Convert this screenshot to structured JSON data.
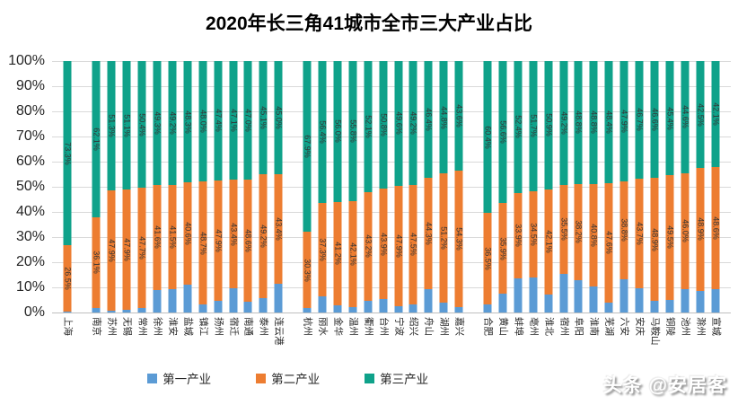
{
  "title": "2020年长三角41城市全市三大产业占比",
  "footer": {
    "watermark": "头条 @安居客"
  },
  "colors": {
    "primary": "#5B9BD5",
    "secondary": "#ED7D31",
    "tertiary": "#0FA28A",
    "gridline": "#D9D9D9"
  },
  "legend": [
    {
      "label": "第一产业",
      "color": "#5B9BD5"
    },
    {
      "label": "第二产业",
      "color": "#ED7D31"
    },
    {
      "label": "第三产业",
      "color": "#0FA28A"
    }
  ],
  "y_axis": {
    "ticks": [
      "100%",
      "90%",
      "80%",
      "70%",
      "60%",
      "50%",
      "40%",
      "30%",
      "20%",
      "10%",
      "0%"
    ]
  },
  "chart_data": {
    "type": "bar",
    "stacked": true,
    "unit": "%",
    "ylim": [
      0,
      100
    ],
    "grid": true,
    "series_names": [
      "第一产业",
      "第二产业",
      "第三产业"
    ],
    "labels_shown_for_series": [
      false,
      true,
      true
    ],
    "note": "values are [第一产业, 第二产业, 第三产业] in %; 第一产业 heights inferred from bars (no labels printed for blue series)",
    "groups": [
      {
        "cities": [
          "上海"
        ],
        "values": [
          [
            0.2,
            26.5,
            73.3
          ]
        ]
      },
      {
        "cities": [
          "南京",
          "苏州",
          "无锡",
          "常州",
          "徐州",
          "淮安",
          "盐城",
          "镇江",
          "扬州",
          "宿迁",
          "南通",
          "泰州",
          "连云港"
        ],
        "values": [
          [
            1.8,
            36.1,
            62.1
          ],
          [
            0.8,
            47.9,
            51.3
          ],
          [
            1.0,
            47.9,
            51.1
          ],
          [
            1.9,
            47.7,
            50.4
          ],
          [
            9.1,
            41.6,
            49.3
          ],
          [
            9.3,
            41.5,
            49.2
          ],
          [
            11.1,
            40.6,
            48.3
          ],
          [
            3.3,
            48.7,
            48.0
          ],
          [
            4.7,
            47.9,
            47.4
          ],
          [
            9.5,
            43.4,
            47.1
          ],
          [
            4.4,
            48.6,
            47.0
          ],
          [
            5.7,
            49.2,
            45.1
          ],
          [
            11.6,
            43.4,
            45.0
          ]
        ]
      },
      {
        "cities": [
          "杭州",
          "丽水",
          "金华",
          "温州",
          "衢州",
          "台州",
          "宁波",
          "绍兴",
          "舟山",
          "湖州",
          "嘉兴"
        ],
        "values": [
          [
            1.8,
            30.3,
            67.9
          ],
          [
            6.3,
            37.3,
            56.4
          ],
          [
            2.8,
            41.2,
            56.0
          ],
          [
            2.1,
            42.1,
            55.8
          ],
          [
            4.7,
            43.2,
            52.1
          ],
          [
            5.3,
            43.9,
            50.8
          ],
          [
            2.5,
            47.9,
            49.6
          ],
          [
            3.3,
            47.5,
            49.2
          ],
          [
            9.3,
            44.3,
            46.4
          ],
          [
            4.0,
            51.2,
            44.8
          ],
          [
            2.1,
            54.3,
            43.6
          ]
        ]
      },
      {
        "cities": [
          "合肥",
          "黄山",
          "蚌埠",
          "亳州",
          "淮北",
          "宿州",
          "阜阳",
          "淮南",
          "芜湖",
          "六安",
          "安庆",
          "马鞍山",
          "铜陵",
          "池州",
          "滁州",
          "宣城"
        ],
        "values": [
          [
            3.1,
            36.5,
            60.4
          ],
          [
            7.5,
            35.9,
            56.6
          ],
          [
            13.7,
            33.9,
            52.4
          ],
          [
            13.8,
            34.5,
            51.7
          ],
          [
            7.0,
            42.1,
            50.9
          ],
          [
            15.3,
            35.5,
            49.2
          ],
          [
            13.0,
            38.2,
            48.8
          ],
          [
            10.4,
            40.8,
            48.8
          ],
          [
            4.0,
            47.6,
            48.4
          ],
          [
            13.3,
            38.8,
            47.9
          ],
          [
            9.6,
            43.7,
            46.7
          ],
          [
            4.5,
            48.9,
            46.6
          ],
          [
            5.1,
            49.5,
            45.4
          ],
          [
            9.4,
            46.0,
            44.6
          ],
          [
            8.6,
            48.9,
            42.5
          ],
          [
            9.3,
            48.6,
            42.1
          ]
        ]
      }
    ]
  }
}
